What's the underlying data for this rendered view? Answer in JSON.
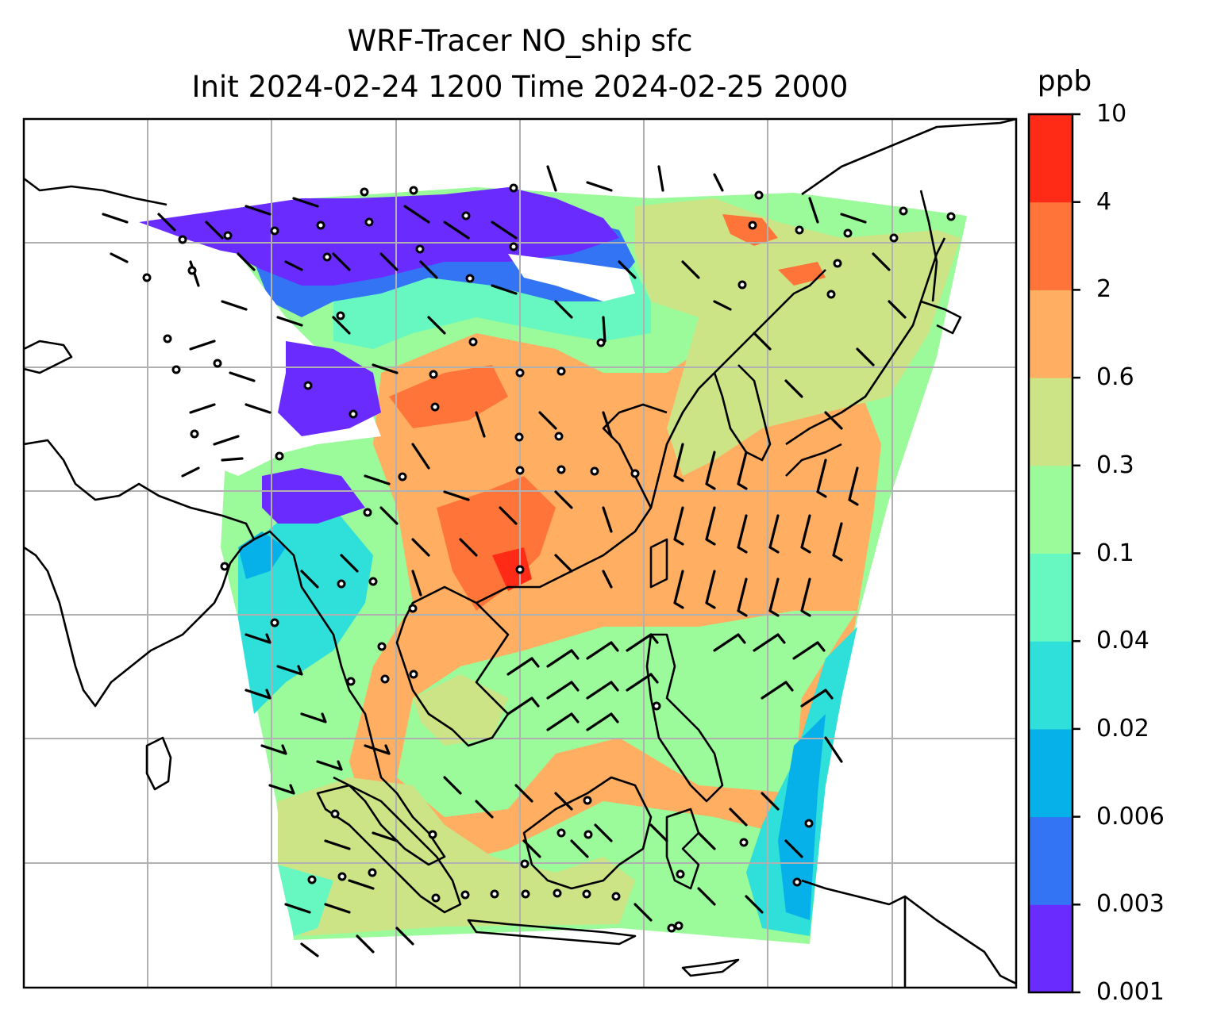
{
  "title": {
    "line1": "WRF-Tracer NO_ship sfc",
    "line2": "Init 2024-02-24 1200 Time 2024-02-25 2000"
  },
  "colorbar": {
    "unit": "ppb",
    "levels": [
      "0.001",
      "0.003",
      "0.006",
      "0.02",
      "0.04",
      "0.1",
      "0.3",
      "0.6",
      "2",
      "4",
      "10"
    ],
    "colors": [
      "#6a2bff",
      "#3374f5",
      "#06b1ea",
      "#2fdfd9",
      "#66f8c0",
      "#9bfa99",
      "#cde486",
      "#ffae62",
      "#ff7539",
      "#ff2b16"
    ]
  },
  "map": {
    "land_outline_color": "#000000",
    "gridline_color": "#b0b0b0",
    "no_data_color": "#ffffff",
    "overlay": "wind barbs and calm-wind circles"
  }
}
